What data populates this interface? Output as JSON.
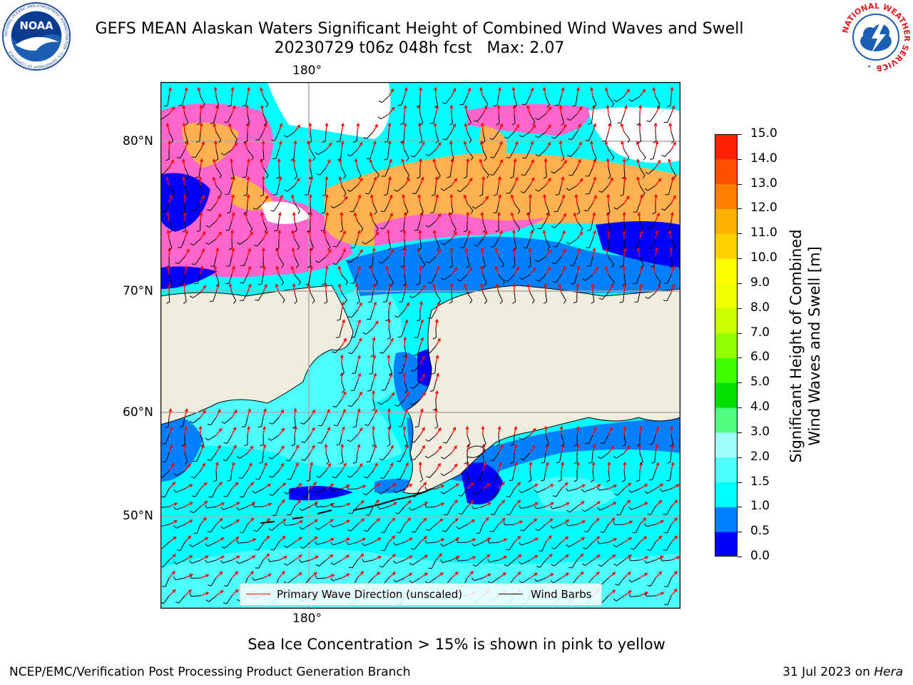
{
  "title": {
    "line1": "GEFS MEAN Alaskan Waters Significant Height of Combined Wind Waves and Swell",
    "line2": "20230729 t06z 048h fcst   Max: 2.07"
  },
  "map": {
    "lon_labels_top": [
      "180°"
    ],
    "lon_labels_bottom": [
      "180°"
    ],
    "lat_labels": [
      "80°N",
      "70°N",
      "60°N",
      "50°N"
    ],
    "land_color": "#efeddd",
    "legend": {
      "items": [
        {
          "label": "Primary Wave Direction (unscaled)",
          "color": "#ff0000"
        },
        {
          "label": "Wind Barbs",
          "color": "#000000"
        }
      ]
    }
  },
  "colorbar": {
    "label_line1": "Significant Height of Combined",
    "label_line2": "Wind Waves and Swell [m]",
    "ticks": [
      "15.0",
      "14.0",
      "13.0",
      "12.0",
      "11.0",
      "10.0",
      "9.0",
      "8.0",
      "7.0",
      "6.0",
      "5.0",
      "4.0",
      "3.0",
      "2.0",
      "1.5",
      "1.0",
      "0.5",
      "0.0"
    ],
    "colors": [
      "#0000ff",
      "#0080ff",
      "#00ffff",
      "#4dffff",
      "#a0ffff",
      "#50ff80",
      "#00e000",
      "#40ff00",
      "#90ff00",
      "#c8ff00",
      "#f0ff00",
      "#ffff00",
      "#ffd000",
      "#ffb000",
      "#ff8000",
      "#ff5000",
      "#ff2000"
    ]
  },
  "footnote": "Sea Ice Concentration > 15% is shown in pink to yellow",
  "credit_left": "NCEP/EMC/Verification Post Processing Product Generation Branch",
  "credit_right_prefix": "31 Jul 2023 on ",
  "credit_right_italic": "Hera",
  "logos": {
    "noaa_text": "NOAA",
    "noaa_ring": "NATIONAL OCEANIC AND ATMOSPHERIC ADMINISTRATION · U.S. DEPARTMENT OF COMMERCE",
    "nws_ring": "NATIONAL WEATHER SERVICE"
  }
}
